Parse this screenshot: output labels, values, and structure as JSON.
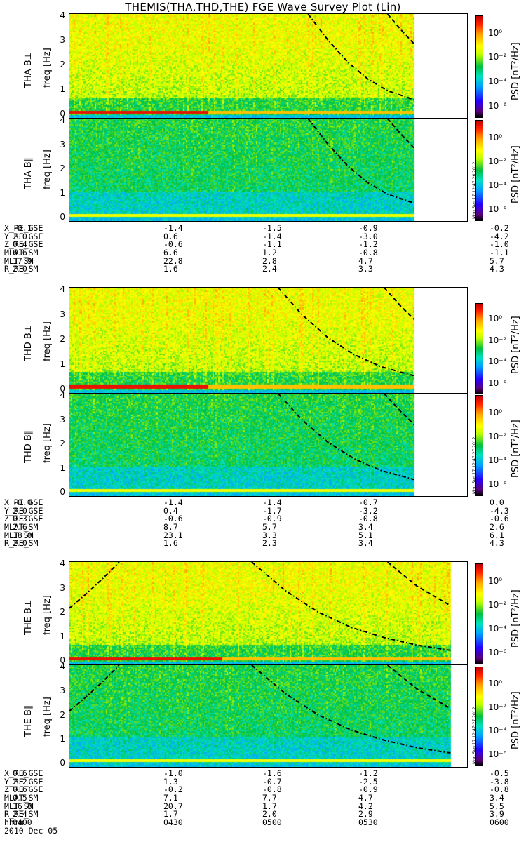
{
  "title": "THEMIS(THA,THD,THE) FGE Wave Survey Plot (Lin)",
  "colorbar": {
    "label": "PSD [nT²/Hz]",
    "ticks": [
      "10⁰",
      "10⁻²",
      "10⁻⁴",
      "10⁻⁶"
    ],
    "colors": [
      "#000000",
      "#5b007f",
      "#2500ff",
      "#00a0ff",
      "#00e0c0",
      "#00c040",
      "#c0ff00",
      "#ffff00",
      "#ffa000",
      "#ff2000",
      "#c00000"
    ],
    "stamps": [
      "Mon Sep 17 12:47:26 2012",
      "Mon Sep 17 12:47:27 2012",
      "Mon Sep 17 12:47:27 2012"
    ]
  },
  "freq_ticks": [
    "0",
    "1",
    "2",
    "3",
    "4"
  ],
  "panels": [
    {
      "ylabel": "THA B⊥",
      "freq_label": "freq [Hz]"
    },
    {
      "ylabel": "THA B∥",
      "freq_label": "freq [Hz]"
    },
    {
      "ylabel": "THD B⊥",
      "freq_label": "freq [Hz]"
    },
    {
      "ylabel": "THD B∥",
      "freq_label": "freq [Hz]"
    },
    {
      "ylabel": "THE B⊥",
      "freq_label": "freq [Hz]"
    },
    {
      "ylabel": "THE B∥",
      "freq_label": "freq [Hz]"
    }
  ],
  "ephemeris": [
    {
      "rows": [
        {
          "name": "X_RE_GSE",
          "values": [
            "-0.1",
            "-1.4",
            "-1.5",
            "-0.9",
            "-0.2"
          ]
        },
        {
          "name": "Y_RE_GSE",
          "values": [
            "2.0",
            "0.6",
            "-1.4",
            "-3.0",
            "-4.2"
          ]
        },
        {
          "name": "Z_RE_GSE",
          "values": [
            "0.4",
            "-0.6",
            "-1.1",
            "-1.2",
            "-1.0"
          ]
        },
        {
          "name": "MLAT_SM",
          "values": [
            "6.6",
            "6.6",
            "1.2",
            "-0.8",
            "-1.1"
          ]
        },
        {
          "name": "MLT_SM",
          "values": [
            "17.9",
            "22.8",
            "2.8",
            "4.7",
            "5.7"
          ]
        },
        {
          "name": "R_RE_SM",
          "values": [
            "2.0",
            "1.6",
            "2.4",
            "3.3",
            "4.3"
          ]
        }
      ]
    },
    {
      "rows": [
        {
          "name": "X_RE_GSE",
          "values": [
            "-0.0",
            "-1.4",
            "-1.4",
            "-0.7",
            "0.0"
          ]
        },
        {
          "name": "Y_RE_GSE",
          "values": [
            "2.0",
            "0.4",
            "-1.7",
            "-3.2",
            "-4.3"
          ]
        },
        {
          "name": "Z_RE_GSE",
          "values": [
            "0.3",
            "-0.6",
            "-0.9",
            "-0.8",
            "-0.6"
          ]
        },
        {
          "name": "MLAT_SM",
          "values": [
            "2.6",
            "8.7",
            "5.7",
            "3.4",
            "2.6"
          ]
        },
        {
          "name": "MLT_SM",
          "values": [
            "18.0",
            "23.1",
            "3.3",
            "5.1",
            "6.1"
          ]
        },
        {
          "name": "R_RE_SM",
          "values": [
            "2.0",
            "1.6",
            "2.3",
            "3.4",
            "4.3"
          ]
        }
      ]
    },
    {
      "rows": [
        {
          "name": "X_RE_GSE",
          "values": [
            "0.6",
            "-1.0",
            "-1.6",
            "-1.2",
            "-0.5"
          ]
        },
        {
          "name": "Y_RE_GSE",
          "values": [
            "2.2",
            "1.3",
            "-0.7",
            "-2.5",
            "-3.8"
          ]
        },
        {
          "name": "Z_RE_GSE",
          "values": [
            "0.6",
            "-0.2",
            "-0.8",
            "-0.9",
            "-0.8"
          ]
        },
        {
          "name": "MLAT_SM",
          "values": [
            "0.5",
            "7.1",
            "7.7",
            "4.7",
            "3.4"
          ]
        },
        {
          "name": "MLT_SM",
          "values": [
            "16.8",
            "20.7",
            "1.7",
            "4.2",
            "5.5"
          ]
        },
        {
          "name": "R_RE_SM",
          "values": [
            "2.4",
            "1.7",
            "2.0",
            "2.9",
            "3.9"
          ]
        },
        {
          "name": "hhmm",
          "values": [
            "0400",
            "0430",
            "0500",
            "0530",
            "0600"
          ]
        }
      ]
    }
  ],
  "date": "2010 Dec 05",
  "chart_data": {
    "type": "heatmap",
    "title": "THEMIS(THA,THD,THE) FGE Wave Survey Plot (Lin)",
    "xlabel": "hhmm",
    "x_ticks": [
      "0400",
      "0430",
      "0500",
      "0530",
      "0600"
    ],
    "xlim": [
      "0400",
      "0600"
    ],
    "ylabel": "freq [Hz]",
    "ylim": [
      0,
      4
    ],
    "colorbar_label": "PSD [nT²/Hz]",
    "colorbar_ticks": [
      "1e0",
      "1e-2",
      "1e-4",
      "1e-6"
    ],
    "colorbar_scale": "log",
    "panels": [
      {
        "name": "THA B⊥",
        "data_end": "0544",
        "perp": true,
        "curves": [
          {
            "style": "dash-dot",
            "x": [
              "0512",
              "0518",
              "0524",
              "0530",
              "0536",
              "0544"
            ],
            "y": [
              4.0,
              3.0,
              2.15,
              1.5,
              1.05,
              0.7
            ]
          },
          {
            "style": "dashed",
            "x": [
              "0536",
              "0540",
              "0544"
            ],
            "y": [
              4.0,
              3.4,
              2.85
            ]
          }
        ]
      },
      {
        "name": "THA B∥",
        "data_end": "0544",
        "perp": false,
        "curves": [
          {
            "style": "dash-dot",
            "x": [
              "0512",
              "0518",
              "0524",
              "0530",
              "0536",
              "0544"
            ],
            "y": [
              4.0,
              3.0,
              2.15,
              1.5,
              1.05,
              0.7
            ]
          },
          {
            "style": "dashed",
            "x": [
              "0536",
              "0540",
              "0544"
            ],
            "y": [
              4.0,
              3.4,
              2.85
            ]
          }
        ]
      },
      {
        "name": "THD B⊥",
        "data_end": "0544",
        "perp": true,
        "curves": [
          {
            "style": "dash-dot",
            "x": [
              "0503",
              "0510",
              "0518",
              "0526",
              "0534",
              "0544"
            ],
            "y": [
              4.0,
              3.0,
              2.1,
              1.45,
              1.0,
              0.65
            ]
          },
          {
            "style": "dashed",
            "x": [
              "0535",
              "0540",
              "0544"
            ],
            "y": [
              4.0,
              3.3,
              2.8
            ]
          }
        ]
      },
      {
        "name": "THD B∥",
        "data_end": "0544",
        "perp": false,
        "curves": [
          {
            "style": "dash-dot",
            "x": [
              "0503",
              "0510",
              "0518",
              "0526",
              "0534",
              "0544"
            ],
            "y": [
              4.0,
              3.0,
              2.1,
              1.45,
              1.0,
              0.65
            ]
          },
          {
            "style": "dashed",
            "x": [
              "0535",
              "0540",
              "0544"
            ],
            "y": [
              4.0,
              3.3,
              2.8
            ]
          }
        ]
      },
      {
        "name": "THE B⊥",
        "data_end": "0555",
        "perp": true,
        "curves": [
          {
            "style": "dash-dot",
            "x": [
              "0400",
              "0405",
              "0410",
              "0415"
            ],
            "y": [
              2.2,
              2.75,
              3.35,
              4.0
            ]
          },
          {
            "style": "dash-dot",
            "x": [
              "0455",
              "0505",
              "0515",
              "0525",
              "0535",
              "0545",
              "0555"
            ],
            "y": [
              4.0,
              2.9,
              2.05,
              1.45,
              1.05,
              0.75,
              0.55
            ]
          },
          {
            "style": "dashed",
            "x": [
              "0536",
              "0545",
              "0555"
            ],
            "y": [
              4.0,
              3.05,
              2.3
            ]
          }
        ]
      },
      {
        "name": "THE B∥",
        "data_end": "0555",
        "perp": false,
        "curves": [
          {
            "style": "dash-dot",
            "x": [
              "0400",
              "0405",
              "0410",
              "0415"
            ],
            "y": [
              2.2,
              2.75,
              3.35,
              4.0
            ]
          },
          {
            "style": "dash-dot",
            "x": [
              "0455",
              "0505",
              "0515",
              "0525",
              "0535",
              "0545",
              "0555"
            ],
            "y": [
              4.0,
              2.9,
              2.05,
              1.45,
              1.05,
              0.75,
              0.55
            ]
          },
          {
            "style": "dashed",
            "x": [
              "0536",
              "0545",
              "0555"
            ],
            "y": [
              4.0,
              3.05,
              2.3
            ]
          }
        ]
      }
    ]
  }
}
